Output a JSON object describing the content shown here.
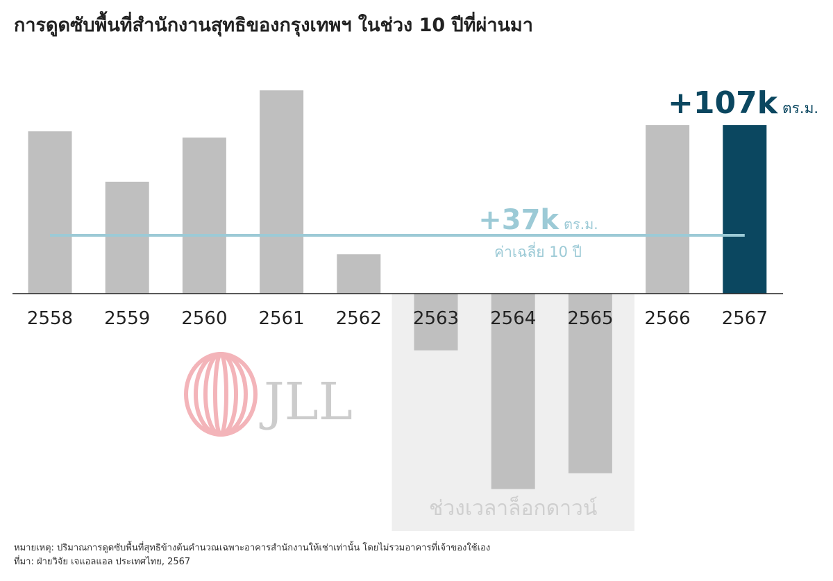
{
  "title": "การดูดซับพื้นที่สำนักงานสุทธิของกรุงเทพฯ ในช่วง 10 ปีที่ผ่านมา",
  "chart_data": {
    "type": "bar",
    "categories": [
      "2558",
      "2559",
      "2560",
      "2561",
      "2562",
      "2563",
      "2564",
      "2565",
      "2566",
      "2567"
    ],
    "values": [
      103,
      71,
      99,
      129,
      25,
      -36,
      -124,
      -114,
      107,
      107
    ],
    "unit": "k ตร.ม.",
    "highlight_label": {
      "value": "+107k",
      "unit": "ตร.ม."
    },
    "average": {
      "value": 37,
      "label": "+37k",
      "unit": "ตร.ม.",
      "caption": "ค่าเฉลี่ย 10 ปี"
    },
    "shaded_region": {
      "from": "2563",
      "to": "2565",
      "label": "ช่วงเวลาล็อกดาวน์"
    },
    "colors": {
      "bar": "#bfbfbf",
      "highlight": "#0b4760",
      "average": "#9ccad6",
      "shade": "#efefef"
    }
  },
  "logo": "JLL",
  "footnote": "หมายเหตุ: ปริมาณการดูดซับพื้นที่สุทธิข้างต้นคำนวณเฉพาะอาคารสำนักงานให้เช่าเท่านั้น โดยไม่รวมอาคารที่เจ้าของใช้เอง",
  "source": "ที่มา: ฝ่ายวิจัย เจแอลแอล ประเทศไทย, 2567"
}
